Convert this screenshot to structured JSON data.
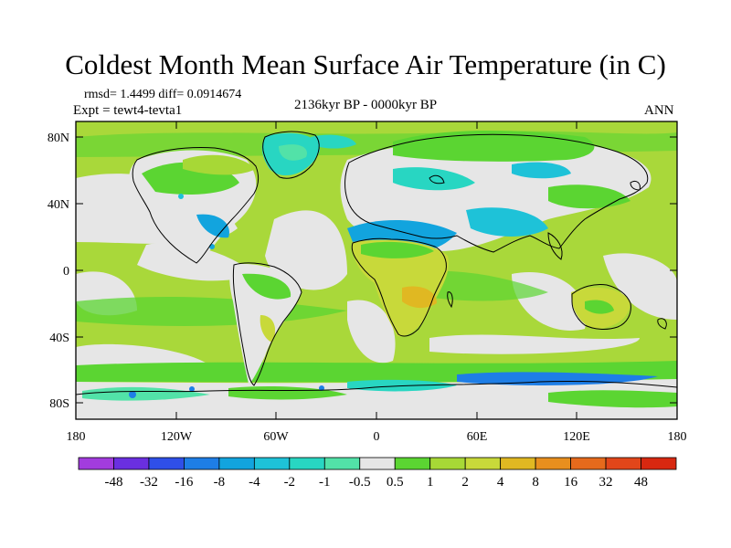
{
  "title": "Coldest Month Mean Surface Air Temperature (in C)",
  "rmsd_line": "rmsd= 1.4499  diff= 0.0914674",
  "expt_line": "Expt = tewt4-tevta1",
  "period": "2136kyr BP - 0000kyr BP",
  "season": "ANN",
  "y_tick_labels": [
    "80N",
    "40N",
    "0",
    "40S",
    "80S"
  ],
  "x_tick_labels": [
    "180",
    "120W",
    "60W",
    "0",
    "60E",
    "120E",
    "180"
  ],
  "colorbar": {
    "labels": [
      "-48",
      "-32",
      "-16",
      "-8",
      "-4",
      "-2",
      "-1",
      "-0.5",
      "0.5",
      "1",
      "2",
      "4",
      "8",
      "16",
      "32",
      "48"
    ],
    "colors": [
      "#a23cde",
      "#6a2fe0",
      "#2f4fe8",
      "#1e7ee6",
      "#12a4de",
      "#1ec2d8",
      "#28d6c2",
      "#52e2a8",
      "#e6e6e6",
      "#5bd532",
      "#a7d836",
      "#c8d93a",
      "#e0b822",
      "#e88f1e",
      "#e66a1c",
      "#e2461a",
      "#d82810"
    ]
  }
}
